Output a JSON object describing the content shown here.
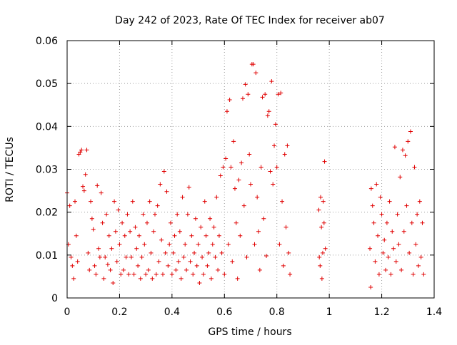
{
  "colors": {
    "marker": "#e00000",
    "grid": "#a0a0a0",
    "axis": "#000000"
  },
  "chart_data": {
    "type": "scatter",
    "title": "Day 242 of 2023, Rate Of TEC Index for receiver ab07",
    "xlabel": "GPS time / hours",
    "ylabel": "ROTI / TECUs",
    "xlim": [
      0,
      1.4
    ],
    "ylim": [
      0,
      0.06
    ],
    "x_ticks": [
      0,
      0.2,
      0.4,
      0.6,
      0.8,
      1,
      1.2,
      1.4
    ],
    "x_tick_labels": [
      "0",
      "0.2",
      "0.4",
      "0.6",
      "0.8",
      "1",
      "1.2",
      "1.4"
    ],
    "y_ticks": [
      0,
      0.01,
      0.02,
      0.03,
      0.04,
      0.05,
      0.06
    ],
    "y_tick_labels": [
      "0",
      "0.01",
      "0.02",
      "0.03",
      "0.04",
      "0.05",
      "0.06"
    ],
    "grid": true,
    "marker": "+",
    "series": [
      {
        "points": [
          [
            0.0,
            0.0245
          ],
          [
            0.005,
            0.0125
          ],
          [
            0.01,
            0.0215
          ],
          [
            0.015,
            0.0095
          ],
          [
            0.02,
            0.0075
          ],
          [
            0.025,
            0.0045
          ],
          [
            0.03,
            0.0225
          ],
          [
            0.035,
            0.0145
          ],
          [
            0.04,
            0.0085
          ],
          [
            0.045,
            0.0335
          ],
          [
            0.05,
            0.034
          ],
          [
            0.055,
            0.0345
          ],
          [
            0.06,
            0.026
          ],
          [
            0.065,
            0.025
          ],
          [
            0.07,
            0.0288
          ],
          [
            0.075,
            0.0345
          ],
          [
            0.08,
            0.0105
          ],
          [
            0.085,
            0.0065
          ],
          [
            0.09,
            0.0225
          ],
          [
            0.095,
            0.0185
          ],
          [
            0.1,
            0.016
          ],
          [
            0.105,
            0.0075
          ],
          [
            0.11,
            0.0055
          ],
          [
            0.115,
            0.0262
          ],
          [
            0.12,
            0.0115
          ],
          [
            0.125,
            0.0095
          ],
          [
            0.13,
            0.0245
          ],
          [
            0.135,
            0.0175
          ],
          [
            0.14,
            0.0045
          ],
          [
            0.145,
            0.0095
          ],
          [
            0.15,
            0.0195
          ],
          [
            0.155,
            0.0078
          ],
          [
            0.16,
            0.0145
          ],
          [
            0.165,
            0.0065
          ],
          [
            0.17,
            0.0115
          ],
          [
            0.175,
            0.0035
          ],
          [
            0.18,
            0.0225
          ],
          [
            0.185,
            0.0155
          ],
          [
            0.19,
            0.0085
          ],
          [
            0.195,
            0.0205
          ],
          [
            0.2,
            0.0125
          ],
          [
            0.205,
            0.0055
          ],
          [
            0.21,
            0.0175
          ],
          [
            0.215,
            0.0065
          ],
          [
            0.22,
            0.0145
          ],
          [
            0.225,
            0.0095
          ],
          [
            0.23,
            0.0195
          ],
          [
            0.235,
            0.0055
          ],
          [
            0.24,
            0.0155
          ],
          [
            0.245,
            0.0095
          ],
          [
            0.25,
            0.0225
          ],
          [
            0.255,
            0.0055
          ],
          [
            0.26,
            0.0165
          ],
          [
            0.265,
            0.0115
          ],
          [
            0.27,
            0.0075
          ],
          [
            0.275,
            0.0145
          ],
          [
            0.28,
            0.0045
          ],
          [
            0.285,
            0.0095
          ],
          [
            0.29,
            0.0195
          ],
          [
            0.295,
            0.0125
          ],
          [
            0.3,
            0.0055
          ],
          [
            0.305,
            0.0175
          ],
          [
            0.31,
            0.0065
          ],
          [
            0.315,
            0.0225
          ],
          [
            0.32,
            0.0105
          ],
          [
            0.325,
            0.0045
          ],
          [
            0.33,
            0.0155
          ],
          [
            0.335,
            0.0195
          ],
          [
            0.34,
            0.0055
          ],
          [
            0.345,
            0.0215
          ],
          [
            0.35,
            0.0085
          ],
          [
            0.355,
            0.0265
          ],
          [
            0.36,
            0.0135
          ],
          [
            0.365,
            0.0055
          ],
          [
            0.37,
            0.0295
          ],
          [
            0.375,
            0.0105
          ],
          [
            0.38,
            0.0248
          ],
          [
            0.385,
            0.0075
          ],
          [
            0.39,
            0.0125
          ],
          [
            0.395,
            0.0175
          ],
          [
            0.4,
            0.0055
          ],
          [
            0.405,
            0.0105
          ],
          [
            0.41,
            0.0145
          ],
          [
            0.415,
            0.0065
          ],
          [
            0.42,
            0.0195
          ],
          [
            0.425,
            0.0085
          ],
          [
            0.43,
            0.0155
          ],
          [
            0.435,
            0.0045
          ],
          [
            0.44,
            0.0235
          ],
          [
            0.445,
            0.0095
          ],
          [
            0.45,
            0.0125
          ],
          [
            0.455,
            0.0065
          ],
          [
            0.46,
            0.0195
          ],
          [
            0.465,
            0.0258
          ],
          [
            0.47,
            0.0085
          ],
          [
            0.475,
            0.0145
          ],
          [
            0.48,
            0.0055
          ],
          [
            0.485,
            0.0105
          ],
          [
            0.49,
            0.0185
          ],
          [
            0.495,
            0.0075
          ],
          [
            0.5,
            0.0125
          ],
          [
            0.505,
            0.0035
          ],
          [
            0.51,
            0.0165
          ],
          [
            0.515,
            0.0095
          ],
          [
            0.52,
            0.0055
          ],
          [
            0.525,
            0.0225
          ],
          [
            0.53,
            0.0145
          ],
          [
            0.535,
            0.0075
          ],
          [
            0.54,
            0.0105
          ],
          [
            0.545,
            0.0185
          ],
          [
            0.55,
            0.0045
          ],
          [
            0.555,
            0.0125
          ],
          [
            0.56,
            0.0165
          ],
          [
            0.565,
            0.0095
          ],
          [
            0.57,
            0.0235
          ],
          [
            0.575,
            0.0065
          ],
          [
            0.58,
            0.0145
          ],
          [
            0.585,
            0.0285
          ],
          [
            0.59,
            0.0105
          ],
          [
            0.595,
            0.0305
          ],
          [
            0.6,
            0.0055
          ],
          [
            0.605,
            0.0325
          ],
          [
            0.61,
            0.0435
          ],
          [
            0.615,
            0.0125
          ],
          [
            0.62,
            0.0462
          ],
          [
            0.625,
            0.0305
          ],
          [
            0.63,
            0.0085
          ],
          [
            0.635,
            0.0365
          ],
          [
            0.64,
            0.0255
          ],
          [
            0.645,
            0.0175
          ],
          [
            0.65,
            0.0045
          ],
          [
            0.655,
            0.0275
          ],
          [
            0.66,
            0.0145
          ],
          [
            0.665,
            0.0315
          ],
          [
            0.67,
            0.0465
          ],
          [
            0.675,
            0.0215
          ],
          [
            0.68,
            0.0498
          ],
          [
            0.685,
            0.0095
          ],
          [
            0.69,
            0.0475
          ],
          [
            0.695,
            0.0335
          ],
          [
            0.7,
            0.0265
          ],
          [
            0.705,
            0.0545
          ],
          [
            0.71,
            0.0545
          ],
          [
            0.715,
            0.0125
          ],
          [
            0.72,
            0.0525
          ],
          [
            0.725,
            0.0235
          ],
          [
            0.73,
            0.0155
          ],
          [
            0.735,
            0.0065
          ],
          [
            0.74,
            0.0305
          ],
          [
            0.745,
            0.0468
          ],
          [
            0.75,
            0.0185
          ],
          [
            0.755,
            0.0475
          ],
          [
            0.76,
            0.0098
          ],
          [
            0.765,
            0.0425
          ],
          [
            0.77,
            0.0435
          ],
          [
            0.775,
            0.0295
          ],
          [
            0.78,
            0.0505
          ],
          [
            0.785,
            0.0265
          ],
          [
            0.79,
            0.0355
          ],
          [
            0.795,
            0.0405
          ],
          [
            0.8,
            0.0305
          ],
          [
            0.805,
            0.0475
          ],
          [
            0.81,
            0.0125
          ],
          [
            0.815,
            0.0478
          ],
          [
            0.82,
            0.0225
          ],
          [
            0.825,
            0.0075
          ],
          [
            0.83,
            0.0335
          ],
          [
            0.835,
            0.0165
          ],
          [
            0.84,
            0.0355
          ],
          [
            0.845,
            0.0105
          ],
          [
            0.85,
            0.0055
          ],
          [
            0.96,
            0.0205
          ],
          [
            0.962,
            0.0095
          ],
          [
            0.965,
            0.0075
          ],
          [
            0.967,
            0.0235
          ],
          [
            0.97,
            0.0165
          ],
          [
            0.972,
            0.0045
          ],
          [
            0.975,
            0.0105
          ],
          [
            0.977,
            0.0225
          ],
          [
            0.98,
            0.0175
          ],
          [
            0.982,
            0.0318
          ],
          [
            0.985,
            0.0115
          ],
          [
            1.155,
            0.0115
          ],
          [
            1.158,
            0.0025
          ],
          [
            1.16,
            0.0255
          ],
          [
            1.165,
            0.0215
          ],
          [
            1.17,
            0.0175
          ],
          [
            1.175,
            0.0085
          ],
          [
            1.18,
            0.0265
          ],
          [
            1.185,
            0.0145
          ],
          [
            1.19,
            0.0055
          ],
          [
            1.195,
            0.0235
          ],
          [
            1.2,
            0.0195
          ],
          [
            1.205,
            0.0105
          ],
          [
            1.21,
            0.0135
          ],
          [
            1.215,
            0.0065
          ],
          [
            1.22,
            0.0175
          ],
          [
            1.225,
            0.0095
          ],
          [
            1.23,
            0.0225
          ],
          [
            1.235,
            0.0055
          ],
          [
            1.24,
            0.0155
          ],
          [
            1.245,
            0.0115
          ],
          [
            1.25,
            0.0352
          ],
          [
            1.255,
            0.0085
          ],
          [
            1.26,
            0.0195
          ],
          [
            1.265,
            0.0125
          ],
          [
            1.27,
            0.0282
          ],
          [
            1.275,
            0.0065
          ],
          [
            1.28,
            0.0345
          ],
          [
            1.285,
            0.0155
          ],
          [
            1.29,
            0.0332
          ],
          [
            1.295,
            0.0215
          ],
          [
            1.3,
            0.0365
          ],
          [
            1.305,
            0.0105
          ],
          [
            1.31,
            0.0388
          ],
          [
            1.315,
            0.0175
          ],
          [
            1.32,
            0.0055
          ],
          [
            1.325,
            0.0305
          ],
          [
            1.33,
            0.0125
          ],
          [
            1.335,
            0.0195
          ],
          [
            1.34,
            0.0075
          ],
          [
            1.345,
            0.0225
          ],
          [
            1.35,
            0.0095
          ],
          [
            1.355,
            0.0175
          ],
          [
            1.36,
            0.0055
          ]
        ]
      }
    ]
  }
}
